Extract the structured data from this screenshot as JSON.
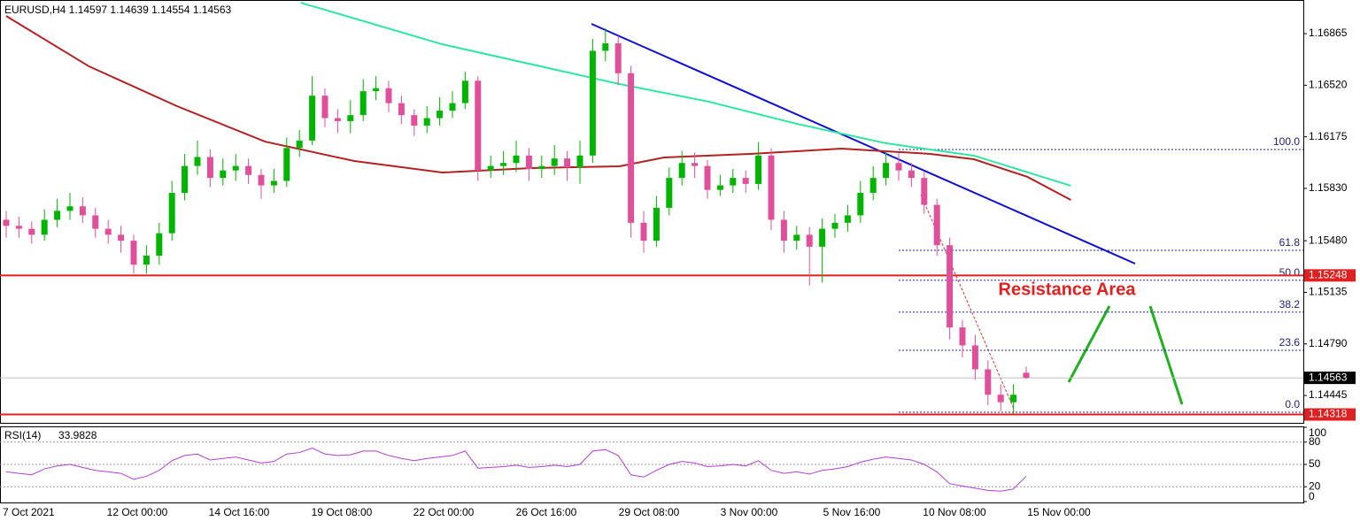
{
  "chart_data": {
    "type": "candlestick",
    "title": "EURUSD,H4  1.14597 1.14639 1.14554 1.14563",
    "ylim": [
      1.14262,
      1.1709
    ],
    "yticks": [
      1.16865,
      {
        "value": 1.1652,
        "label": "1.16520"
      },
      1.16175,
      {
        "value": 1.1583,
        "label": "1.15830"
      },
      {
        "value": 1.1548,
        "label": "1.15480"
      },
      1.15135,
      {
        "value": 1.1479,
        "label": "1.14790"
      },
      1.14445
    ],
    "bull_color": "#00b400",
    "bear_color": "#e0509a",
    "candles": [
      [
        1.1562,
        1.1568,
        1.155,
        1.1558
      ],
      [
        1.1558,
        1.1564,
        1.155,
        1.1556
      ],
      [
        1.1556,
        1.1561,
        1.1546,
        1.1552
      ],
      [
        1.1552,
        1.1569,
        1.1548,
        1.1562
      ],
      [
        1.1562,
        1.1576,
        1.1557,
        1.1568
      ],
      [
        1.1568,
        1.158,
        1.1562,
        1.1571
      ],
      [
        1.1571,
        1.1577,
        1.156,
        1.1565
      ],
      [
        1.1565,
        1.157,
        1.155,
        1.1556
      ],
      [
        1.1556,
        1.1562,
        1.1546,
        1.1552
      ],
      [
        1.1552,
        1.1558,
        1.154,
        1.1548
      ],
      [
        1.1548,
        1.1552,
        1.1526,
        1.1532
      ],
      [
        1.1532,
        1.1545,
        1.1526,
        1.1538
      ],
      [
        1.1538,
        1.156,
        1.1532,
        1.1553
      ],
      [
        1.1553,
        1.1588,
        1.1548,
        1.158
      ],
      [
        1.158,
        1.1606,
        1.1575,
        1.1598
      ],
      [
        1.1598,
        1.1615,
        1.1592,
        1.1604
      ],
      [
        1.1604,
        1.1609,
        1.1584,
        1.159
      ],
      [
        1.159,
        1.1603,
        1.1585,
        1.1595
      ],
      [
        1.1595,
        1.1606,
        1.1588,
        1.1598
      ],
      [
        1.1598,
        1.1603,
        1.1586,
        1.1592
      ],
      [
        1.1592,
        1.1596,
        1.1576,
        1.1585
      ],
      [
        1.1585,
        1.1596,
        1.158,
        1.1588
      ],
      [
        1.1588,
        1.1617,
        1.1584,
        1.161
      ],
      [
        1.161,
        1.1622,
        1.1604,
        1.1615
      ],
      [
        1.1615,
        1.1658,
        1.1612,
        1.1645
      ],
      [
        1.1645,
        1.165,
        1.1624,
        1.163
      ],
      [
        1.163,
        1.1636,
        1.162,
        1.1628
      ],
      [
        1.1628,
        1.1642,
        1.162,
        1.1632
      ],
      [
        1.1632,
        1.1656,
        1.1628,
        1.1648
      ],
      [
        1.1648,
        1.1658,
        1.1642,
        1.165
      ],
      [
        1.165,
        1.1655,
        1.1634,
        1.164
      ],
      [
        1.164,
        1.1645,
        1.1626,
        1.1632
      ],
      [
        1.1632,
        1.1636,
        1.1618,
        1.1625
      ],
      [
        1.1625,
        1.1638,
        1.162,
        1.163
      ],
      [
        1.163,
        1.1644,
        1.1625,
        1.1635
      ],
      [
        1.1635,
        1.1648,
        1.163,
        1.164
      ],
      [
        1.164,
        1.1661,
        1.1636,
        1.1655
      ],
      [
        1.1655,
        1.1658,
        1.1588,
        1.1595
      ],
      [
        1.1595,
        1.1605,
        1.159,
        1.1598
      ],
      [
        1.1598,
        1.1608,
        1.1592,
        1.16
      ],
      [
        1.16,
        1.1615,
        1.1594,
        1.1605
      ],
      [
        1.1605,
        1.161,
        1.1588,
        1.1596
      ],
      [
        1.1596,
        1.1605,
        1.159,
        1.1598
      ],
      [
        1.1598,
        1.1612,
        1.1592,
        1.1603
      ],
      [
        1.1603,
        1.1608,
        1.1588,
        1.1597
      ],
      [
        1.1597,
        1.1615,
        1.1586,
        1.1605
      ],
      [
        1.1605,
        1.1683,
        1.16,
        1.1675
      ],
      [
        1.1675,
        1.169,
        1.1668,
        1.168
      ],
      [
        1.168,
        1.1685,
        1.1652,
        1.166
      ],
      [
        1.166,
        1.1665,
        1.155,
        1.156
      ],
      [
        1.156,
        1.1568,
        1.154,
        1.1548
      ],
      [
        1.1548,
        1.1578,
        1.1544,
        1.157
      ],
      [
        1.157,
        1.1597,
        1.1565,
        1.159
      ],
      [
        1.159,
        1.1608,
        1.1585,
        1.16
      ],
      [
        1.16,
        1.1607,
        1.159,
        1.1598
      ],
      [
        1.1598,
        1.1602,
        1.1576,
        1.1582
      ],
      [
        1.1582,
        1.1592,
        1.1578,
        1.1585
      ],
      [
        1.1585,
        1.1596,
        1.158,
        1.159
      ],
      [
        1.159,
        1.1595,
        1.158,
        1.1586
      ],
      [
        1.1586,
        1.1614,
        1.1582,
        1.1605
      ],
      [
        1.1605,
        1.161,
        1.1555,
        1.1562
      ],
      [
        1.1562,
        1.1568,
        1.154,
        1.1548
      ],
      [
        1.1548,
        1.1558,
        1.1542,
        1.1552
      ],
      [
        1.1552,
        1.1557,
        1.1518,
        1.1544
      ],
      [
        1.1544,
        1.1563,
        1.152,
        1.1556
      ],
      [
        1.1556,
        1.1566,
        1.155,
        1.156
      ],
      [
        1.156,
        1.1572,
        1.1554,
        1.1565
      ],
      [
        1.1565,
        1.1588,
        1.156,
        1.158
      ],
      [
        1.158,
        1.1598,
        1.1575,
        1.159
      ],
      [
        1.159,
        1.1608,
        1.1585,
        1.16
      ],
      [
        1.16,
        1.1607,
        1.1588,
        1.1595
      ],
      [
        1.1595,
        1.16,
        1.1584,
        1.159
      ],
      [
        1.159,
        1.1594,
        1.1566,
        1.1572
      ],
      [
        1.1572,
        1.1576,
        1.1538,
        1.1545
      ],
      [
        1.1545,
        1.155,
        1.1482,
        1.149
      ],
      [
        1.149,
        1.1495,
        1.147,
        1.1478
      ],
      [
        1.1478,
        1.1485,
        1.1455,
        1.1462
      ],
      [
        1.1462,
        1.1468,
        1.1438,
        1.1445
      ],
      [
        1.1445,
        1.1452,
        1.1434,
        1.144
      ],
      [
        1.144,
        1.1452,
        1.1432,
        1.1445
      ],
      [
        1.14597,
        1.14639,
        1.14554,
        1.14563
      ]
    ],
    "moving_averages": [
      {
        "color": "#b22222",
        "x": [
          0,
          6.5,
          13.4,
          20.3,
          27.3,
          34.2,
          41.2,
          48.1,
          51.6,
          58.5,
          65.5,
          72.4,
          75.9,
          80.1,
          83.5
        ],
        "values": [
          1.16983,
          1.16646,
          1.1638,
          1.16143,
          1.16013,
          1.15936,
          1.15966,
          1.15978,
          1.16037,
          1.16061,
          1.16096,
          1.16061,
          1.16025,
          1.15907,
          1.15753
        ]
      },
      {
        "color": "#2ee6a0",
        "x": [
          23.1,
          34.2,
          48.1,
          55.1,
          62,
          69,
          75.9,
          83.5
        ],
        "values": [
          1.17072,
          1.16794,
          1.16528,
          1.1641,
          1.16262,
          1.16132,
          1.16049,
          1.15848
        ]
      }
    ],
    "price_levels": [
      {
        "value": 1.15248,
        "color": "#e02020"
      },
      {
        "value": 1.14318,
        "color": "#e02020"
      },
      {
        "value": 1.14563,
        "color": "#000000"
      }
    ],
    "fib_levels": [
      {
        "label": "100.0",
        "value": 1.1609
      },
      {
        "label": "61.8",
        "value": 1.15416
      },
      {
        "label": "50.0",
        "value": 1.15215
      },
      {
        "label": "38.2",
        "value": 1.15002
      },
      {
        "label": "23.6",
        "value": 1.14747
      },
      {
        "label": "0.0",
        "value": 1.14333
      }
    ],
    "annotation": "Resistance Area",
    "time_labels": [
      "7 Oct 2021",
      "12 Oct 00:00",
      "14 Oct 16:00",
      "19 Oct 08:00",
      "22 Oct 00:00",
      "26 Oct 16:00",
      "29 Oct 08:00",
      "3 Nov 00:00",
      "5 Nov 16:00",
      "10 Nov 08:00",
      "15 Nov 00:00"
    ],
    "rsi": {
      "name": "RSI(14)",
      "color": "#b040d0",
      "ylim": [
        0,
        100
      ],
      "yticks": [
        100,
        80,
        50,
        20,
        0
      ],
      "values": [
        40,
        38,
        36,
        44,
        48,
        50,
        46,
        42,
        40,
        38,
        30,
        34,
        42,
        55,
        62,
        64,
        56,
        58,
        60,
        56,
        52,
        54,
        64,
        66,
        72,
        64,
        62,
        63,
        68,
        68,
        62,
        58,
        55,
        58,
        60,
        62,
        68,
        45,
        46,
        47,
        49,
        46,
        47,
        49,
        47,
        50,
        68,
        70,
        62,
        36,
        33,
        42,
        50,
        54,
        52,
        47,
        48,
        50,
        48,
        55,
        42,
        38,
        40,
        37,
        42,
        44,
        47,
        53,
        57,
        60,
        58,
        56,
        50,
        40,
        24,
        21,
        18,
        15,
        14,
        17,
        33.9828
      ]
    }
  }
}
